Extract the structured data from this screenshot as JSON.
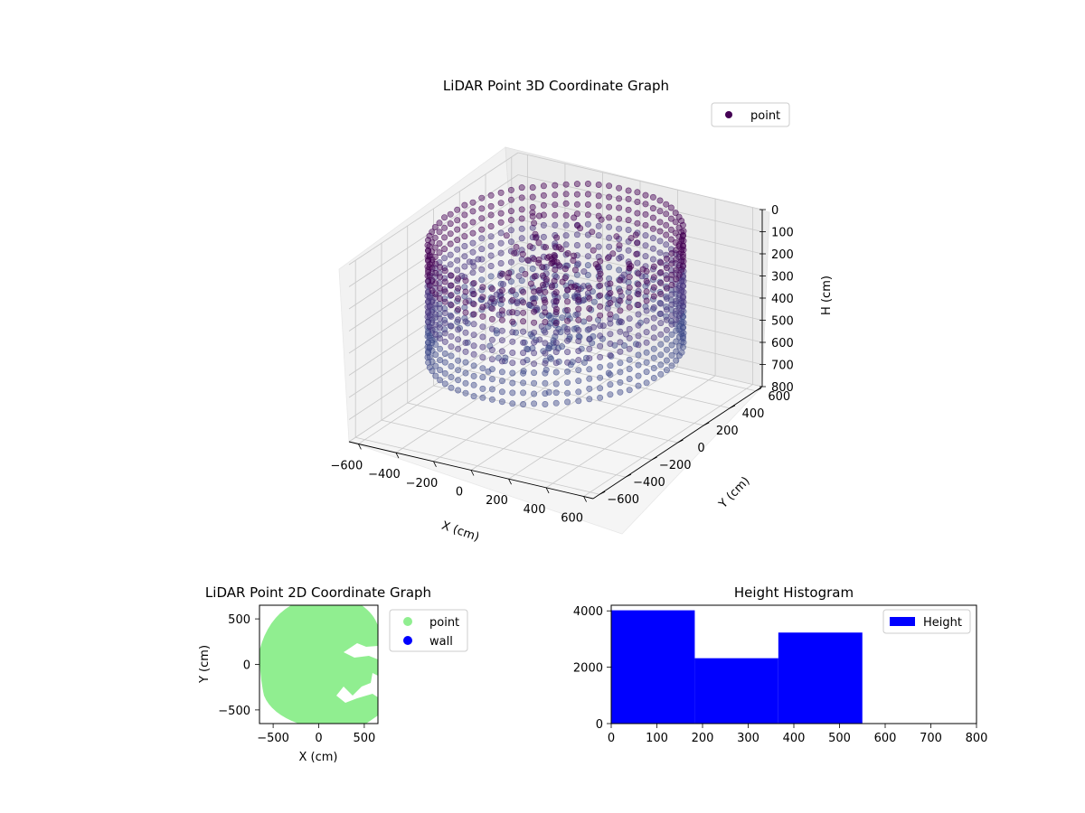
{
  "chart_data": [
    {
      "type": "scatter3d",
      "title": "LiDAR Point 3D Coordinate Graph",
      "xlabel": "X (cm)",
      "ylabel": "Y (cm)",
      "zlabel": "H (cm)",
      "xlim": [
        -650,
        650
      ],
      "ylim": [
        -650,
        650
      ],
      "zlim": [
        800,
        0
      ],
      "x_ticks": [
        "−600",
        "−400",
        "−200",
        "0",
        "200",
        "400",
        "600"
      ],
      "y_ticks": [
        "−600",
        "−400",
        "−200",
        "0",
        "200",
        "400",
        "600"
      ],
      "z_ticks": [
        "0",
        "100",
        "200",
        "300",
        "400",
        "500",
        "600",
        "700",
        "800"
      ],
      "z_tick_values": [
        0,
        100,
        200,
        300,
        400,
        500,
        600,
        700,
        800
      ],
      "series": [
        {
          "name": "point",
          "color": "#440154",
          "description": "ring wall of points radius ~560 cm, heights 0-550 cm, plus interior clutter"
        }
      ],
      "legend": "top-right",
      "grid": true
    },
    {
      "type": "scatter",
      "title": "LiDAR Point 2D Coordinate Graph",
      "xlabel": "X (cm)",
      "ylabel": "Y (cm)",
      "xlim": [
        -650,
        650
      ],
      "ylim": [
        -650,
        650
      ],
      "x_ticks": [
        "−500",
        "0",
        "500"
      ],
      "y_ticks": [
        "500",
        "0",
        "−500"
      ],
      "series": [
        {
          "name": "point",
          "color": "#90ee90"
        },
        {
          "name": "wall",
          "color": "#0000ff"
        }
      ],
      "legend": "outside-right"
    },
    {
      "type": "bar",
      "title": "Height Histogram",
      "xlim": [
        0,
        800
      ],
      "ylim": [
        0,
        4200
      ],
      "x_ticks": [
        "0",
        "100",
        "200",
        "300",
        "400",
        "500",
        "600",
        "700",
        "800"
      ],
      "y_ticks": [
        "0",
        "2000",
        "4000"
      ],
      "bins": [
        {
          "start": 0,
          "end": 183,
          "count": 4020
        },
        {
          "start": 183,
          "end": 366,
          "count": 2320
        },
        {
          "start": 366,
          "end": 550,
          "count": 3230
        }
      ],
      "series": [
        {
          "name": "Height",
          "color": "#0000ff"
        }
      ],
      "legend": "top-right"
    }
  ]
}
